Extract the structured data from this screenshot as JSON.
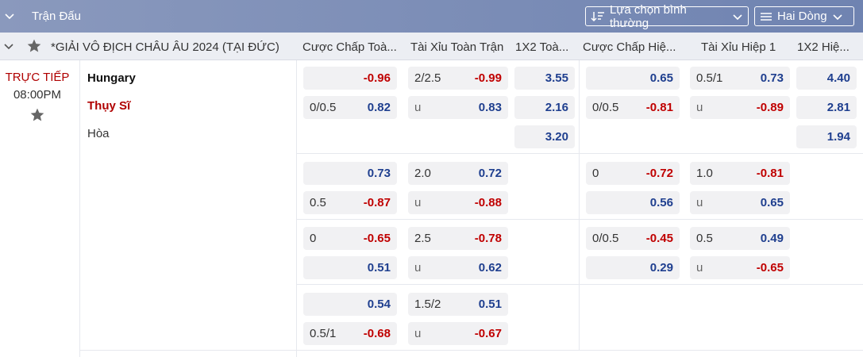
{
  "topbar": {
    "title": "Trận Đấu",
    "sort_button": "Lựa chọn bình thường",
    "lines_button": "Hai Dòng"
  },
  "league": {
    "name": "*GIẢI VÔ ĐỊCH CHÂU ÂU 2024 (TẠI ĐỨC)"
  },
  "columns": [
    "Cược Chấp Toà...",
    "Tài Xỉu Toàn Trận",
    "1X2 Toà...",
    "Cược Chấp Hiệ...",
    "Tài Xỉu Hiệp 1",
    "1X2 Hiệ..."
  ],
  "match": {
    "status": "TRỰC TIẾP",
    "time": "08:00PM",
    "home": "Hungary",
    "away": "Thụy Sĩ",
    "draw": "Hòa"
  },
  "odds_rows": [
    {
      "ft_hdp": [
        {
          "line": "",
          "odds": "-0.96"
        },
        {
          "line": "0/0.5",
          "odds": "0.82"
        }
      ],
      "ft_ou": [
        {
          "line": "2/2.5",
          "odds": "-0.99"
        },
        {
          "line": "u",
          "odds": "0.83"
        }
      ],
      "ft_1x2": [
        "3.55",
        "2.16",
        "3.20"
      ],
      "h1_hdp": [
        {
          "line": "",
          "odds": "0.65"
        },
        {
          "line": "0/0.5",
          "odds": "-0.81"
        }
      ],
      "h1_ou": [
        {
          "line": "0.5/1",
          "odds": "0.73"
        },
        {
          "line": "u",
          "odds": "-0.89"
        }
      ],
      "h1_1x2": [
        "4.40",
        "2.81",
        "1.94"
      ]
    },
    {
      "ft_hdp": [
        {
          "line": "",
          "odds": "0.73"
        },
        {
          "line": "0.5",
          "odds": "-0.87"
        }
      ],
      "ft_ou": [
        {
          "line": "2.0",
          "odds": "0.72"
        },
        {
          "line": "u",
          "odds": "-0.88"
        }
      ],
      "h1_hdp": [
        {
          "line": "0",
          "odds": "-0.72"
        },
        {
          "line": "",
          "odds": "0.56"
        }
      ],
      "h1_ou": [
        {
          "line": "1.0",
          "odds": "-0.81"
        },
        {
          "line": "u",
          "odds": "0.65"
        }
      ]
    },
    {
      "ft_hdp": [
        {
          "line": "0",
          "odds": "-0.65"
        },
        {
          "line": "",
          "odds": "0.51"
        }
      ],
      "ft_ou": [
        {
          "line": "2.5",
          "odds": "-0.78"
        },
        {
          "line": "u",
          "odds": "0.62"
        }
      ],
      "h1_hdp": [
        {
          "line": "0/0.5",
          "odds": "-0.45"
        },
        {
          "line": "",
          "odds": "0.29"
        }
      ],
      "h1_ou": [
        {
          "line": "0.5",
          "odds": "0.49"
        },
        {
          "line": "u",
          "odds": "-0.65"
        }
      ]
    },
    {
      "ft_hdp": [
        {
          "line": "",
          "odds": "0.54"
        },
        {
          "line": "0.5/1",
          "odds": "-0.68"
        }
      ],
      "ft_ou": [
        {
          "line": "1.5/2",
          "odds": "0.51"
        },
        {
          "line": "u",
          "odds": "-0.67"
        }
      ]
    }
  ],
  "colors": {
    "positive": "#1f3f8f",
    "negative": "#c00000",
    "live": "#b00000"
  }
}
